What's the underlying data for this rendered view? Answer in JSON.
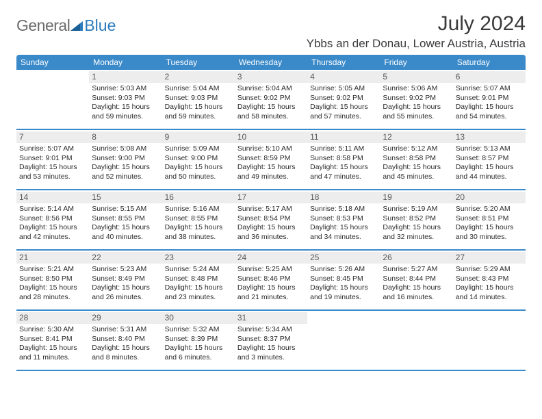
{
  "logo": {
    "text1": "General",
    "text2": "Blue"
  },
  "colors": {
    "accent": "#3a89c9",
    "logo_gray": "#6b6b6b",
    "logo_blue": "#2b7bbd",
    "daynum_bg": "#ededed",
    "daynum_fg": "#585858",
    "text": "#2b2b2b",
    "heading": "#3a3a3a"
  },
  "title": "July 2024",
  "location": "Ybbs an der Donau, Lower Austria, Austria",
  "days_of_week": [
    "Sunday",
    "Monday",
    "Tuesday",
    "Wednesday",
    "Thursday",
    "Friday",
    "Saturday"
  ],
  "weeks": [
    [
      {
        "n": "",
        "sunrise": "",
        "sunset": "",
        "daylight1": "",
        "daylight2": ""
      },
      {
        "n": "1",
        "sunrise": "Sunrise: 5:03 AM",
        "sunset": "Sunset: 9:03 PM",
        "daylight1": "Daylight: 15 hours",
        "daylight2": "and 59 minutes."
      },
      {
        "n": "2",
        "sunrise": "Sunrise: 5:04 AM",
        "sunset": "Sunset: 9:03 PM",
        "daylight1": "Daylight: 15 hours",
        "daylight2": "and 59 minutes."
      },
      {
        "n": "3",
        "sunrise": "Sunrise: 5:04 AM",
        "sunset": "Sunset: 9:02 PM",
        "daylight1": "Daylight: 15 hours",
        "daylight2": "and 58 minutes."
      },
      {
        "n": "4",
        "sunrise": "Sunrise: 5:05 AM",
        "sunset": "Sunset: 9:02 PM",
        "daylight1": "Daylight: 15 hours",
        "daylight2": "and 57 minutes."
      },
      {
        "n": "5",
        "sunrise": "Sunrise: 5:06 AM",
        "sunset": "Sunset: 9:02 PM",
        "daylight1": "Daylight: 15 hours",
        "daylight2": "and 55 minutes."
      },
      {
        "n": "6",
        "sunrise": "Sunrise: 5:07 AM",
        "sunset": "Sunset: 9:01 PM",
        "daylight1": "Daylight: 15 hours",
        "daylight2": "and 54 minutes."
      }
    ],
    [
      {
        "n": "7",
        "sunrise": "Sunrise: 5:07 AM",
        "sunset": "Sunset: 9:01 PM",
        "daylight1": "Daylight: 15 hours",
        "daylight2": "and 53 minutes."
      },
      {
        "n": "8",
        "sunrise": "Sunrise: 5:08 AM",
        "sunset": "Sunset: 9:00 PM",
        "daylight1": "Daylight: 15 hours",
        "daylight2": "and 52 minutes."
      },
      {
        "n": "9",
        "sunrise": "Sunrise: 5:09 AM",
        "sunset": "Sunset: 9:00 PM",
        "daylight1": "Daylight: 15 hours",
        "daylight2": "and 50 minutes."
      },
      {
        "n": "10",
        "sunrise": "Sunrise: 5:10 AM",
        "sunset": "Sunset: 8:59 PM",
        "daylight1": "Daylight: 15 hours",
        "daylight2": "and 49 minutes."
      },
      {
        "n": "11",
        "sunrise": "Sunrise: 5:11 AM",
        "sunset": "Sunset: 8:58 PM",
        "daylight1": "Daylight: 15 hours",
        "daylight2": "and 47 minutes."
      },
      {
        "n": "12",
        "sunrise": "Sunrise: 5:12 AM",
        "sunset": "Sunset: 8:58 PM",
        "daylight1": "Daylight: 15 hours",
        "daylight2": "and 45 minutes."
      },
      {
        "n": "13",
        "sunrise": "Sunrise: 5:13 AM",
        "sunset": "Sunset: 8:57 PM",
        "daylight1": "Daylight: 15 hours",
        "daylight2": "and 44 minutes."
      }
    ],
    [
      {
        "n": "14",
        "sunrise": "Sunrise: 5:14 AM",
        "sunset": "Sunset: 8:56 PM",
        "daylight1": "Daylight: 15 hours",
        "daylight2": "and 42 minutes."
      },
      {
        "n": "15",
        "sunrise": "Sunrise: 5:15 AM",
        "sunset": "Sunset: 8:55 PM",
        "daylight1": "Daylight: 15 hours",
        "daylight2": "and 40 minutes."
      },
      {
        "n": "16",
        "sunrise": "Sunrise: 5:16 AM",
        "sunset": "Sunset: 8:55 PM",
        "daylight1": "Daylight: 15 hours",
        "daylight2": "and 38 minutes."
      },
      {
        "n": "17",
        "sunrise": "Sunrise: 5:17 AM",
        "sunset": "Sunset: 8:54 PM",
        "daylight1": "Daylight: 15 hours",
        "daylight2": "and 36 minutes."
      },
      {
        "n": "18",
        "sunrise": "Sunrise: 5:18 AM",
        "sunset": "Sunset: 8:53 PM",
        "daylight1": "Daylight: 15 hours",
        "daylight2": "and 34 minutes."
      },
      {
        "n": "19",
        "sunrise": "Sunrise: 5:19 AM",
        "sunset": "Sunset: 8:52 PM",
        "daylight1": "Daylight: 15 hours",
        "daylight2": "and 32 minutes."
      },
      {
        "n": "20",
        "sunrise": "Sunrise: 5:20 AM",
        "sunset": "Sunset: 8:51 PM",
        "daylight1": "Daylight: 15 hours",
        "daylight2": "and 30 minutes."
      }
    ],
    [
      {
        "n": "21",
        "sunrise": "Sunrise: 5:21 AM",
        "sunset": "Sunset: 8:50 PM",
        "daylight1": "Daylight: 15 hours",
        "daylight2": "and 28 minutes."
      },
      {
        "n": "22",
        "sunrise": "Sunrise: 5:23 AM",
        "sunset": "Sunset: 8:49 PM",
        "daylight1": "Daylight: 15 hours",
        "daylight2": "and 26 minutes."
      },
      {
        "n": "23",
        "sunrise": "Sunrise: 5:24 AM",
        "sunset": "Sunset: 8:48 PM",
        "daylight1": "Daylight: 15 hours",
        "daylight2": "and 23 minutes."
      },
      {
        "n": "24",
        "sunrise": "Sunrise: 5:25 AM",
        "sunset": "Sunset: 8:46 PM",
        "daylight1": "Daylight: 15 hours",
        "daylight2": "and 21 minutes."
      },
      {
        "n": "25",
        "sunrise": "Sunrise: 5:26 AM",
        "sunset": "Sunset: 8:45 PM",
        "daylight1": "Daylight: 15 hours",
        "daylight2": "and 19 minutes."
      },
      {
        "n": "26",
        "sunrise": "Sunrise: 5:27 AM",
        "sunset": "Sunset: 8:44 PM",
        "daylight1": "Daylight: 15 hours",
        "daylight2": "and 16 minutes."
      },
      {
        "n": "27",
        "sunrise": "Sunrise: 5:29 AM",
        "sunset": "Sunset: 8:43 PM",
        "daylight1": "Daylight: 15 hours",
        "daylight2": "and 14 minutes."
      }
    ],
    [
      {
        "n": "28",
        "sunrise": "Sunrise: 5:30 AM",
        "sunset": "Sunset: 8:41 PM",
        "daylight1": "Daylight: 15 hours",
        "daylight2": "and 11 minutes."
      },
      {
        "n": "29",
        "sunrise": "Sunrise: 5:31 AM",
        "sunset": "Sunset: 8:40 PM",
        "daylight1": "Daylight: 15 hours",
        "daylight2": "and 8 minutes."
      },
      {
        "n": "30",
        "sunrise": "Sunrise: 5:32 AM",
        "sunset": "Sunset: 8:39 PM",
        "daylight1": "Daylight: 15 hours",
        "daylight2": "and 6 minutes."
      },
      {
        "n": "31",
        "sunrise": "Sunrise: 5:34 AM",
        "sunset": "Sunset: 8:37 PM",
        "daylight1": "Daylight: 15 hours",
        "daylight2": "and 3 minutes."
      },
      {
        "n": "",
        "sunrise": "",
        "sunset": "",
        "daylight1": "",
        "daylight2": ""
      },
      {
        "n": "",
        "sunrise": "",
        "sunset": "",
        "daylight1": "",
        "daylight2": ""
      },
      {
        "n": "",
        "sunrise": "",
        "sunset": "",
        "daylight1": "",
        "daylight2": ""
      }
    ]
  ]
}
